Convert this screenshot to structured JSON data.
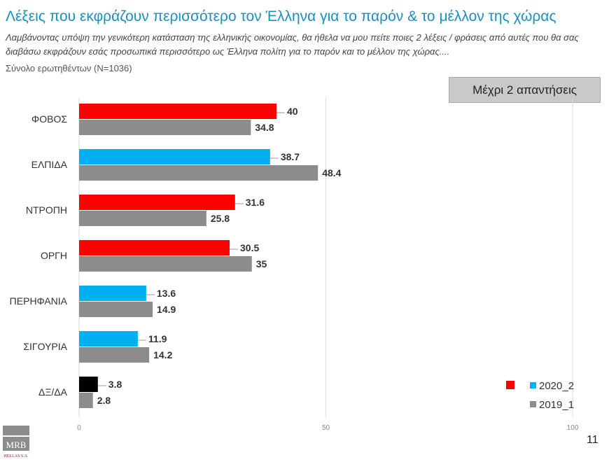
{
  "header": {
    "title": "Λέξεις που εκφράζουν περισσότερο τον Έλληνα για το παρόν & το μέλλον της χώρας",
    "question": "Λαμβάνοντας υπόψη την γενικότερη κατάσταση της ελληνικής οικονομίας, θα ήθελα να μου πείτε ποιες 2  λέξεις / φράσεις από αυτές που θα σας διαβάσω εκφράζουν εσάς προσωπικά περισσότερο ως Έλληνα πολίτη για το παρόν και το μέλλον της χώρας....",
    "base": "Σύνολο ερωτηθέντων (N=1036)"
  },
  "note": "Μέχρι 2 απαντήσεις",
  "page_number": "11",
  "logo": "MRB HELLAS S.A.",
  "chart_data": {
    "type": "bar",
    "orientation": "horizontal",
    "categories": [
      "ΦΟΒΟΣ",
      "ΕΛΠΙΔΑ",
      "ΝΤΡΟΠΗ",
      "ΟΡΓΗ",
      "ΠΕΡΗΦΑΝΙΑ",
      "ΣΙΓΟΥΡΙΑ",
      "ΔΞ/ΔΑ"
    ],
    "series": [
      {
        "name": "2020_2",
        "values": [
          40,
          38.7,
          31.6,
          30.5,
          13.6,
          11.9,
          3.8
        ],
        "colors": [
          "#ff0000",
          "#00b0f0",
          "#ff0000",
          "#ff0000",
          "#00b0f0",
          "#00b0f0",
          "#000000"
        ]
      },
      {
        "name": "2019_1",
        "values": [
          34.8,
          48.4,
          25.8,
          35,
          14.9,
          14.2,
          2.8
        ],
        "color": "#8c8c8c"
      }
    ],
    "xlim": [
      0,
      100
    ],
    "xticks": [
      "0",
      "50",
      "100"
    ],
    "grid": true,
    "legend": "bottom-right"
  }
}
